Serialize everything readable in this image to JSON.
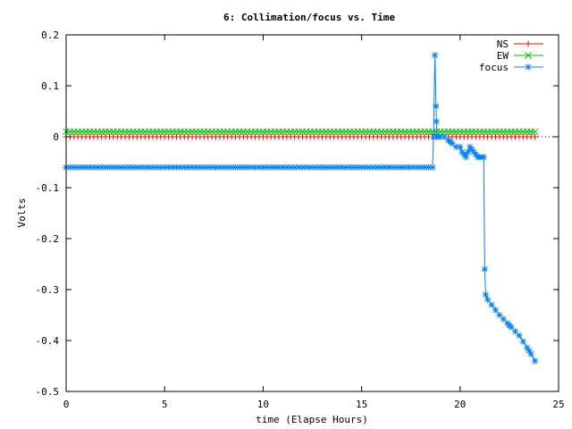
{
  "chart_data": {
    "type": "line",
    "title": "6: Collimation/focus vs. Time",
    "xlabel": "time (Elapse Hours)",
    "ylabel": "Volts",
    "xlim": [
      0,
      25
    ],
    "ylim": [
      -0.5,
      0.2
    ],
    "x_ticks": [
      0,
      5,
      10,
      15,
      20,
      25
    ],
    "x_tick_labels": [
      "0",
      "5",
      "10",
      "15",
      "20",
      "25"
    ],
    "y_ticks": [
      -0.5,
      -0.4,
      -0.3,
      -0.2,
      -0.1,
      0,
      0.1,
      0.2
    ],
    "y_tick_labels": [
      "-0.5",
      "-0.4",
      "-0.3",
      "-0.2",
      "-0.1",
      "0",
      "0.1",
      "0.2"
    ],
    "legend_position": "top-right",
    "series": [
      {
        "name": "NS",
        "color": "#ff0000",
        "marker": "plus",
        "x": [
          0,
          23.8
        ],
        "values": [
          0.0,
          0.0
        ],
        "sample_step": 0.2
      },
      {
        "name": "EW",
        "color": "#00c000",
        "marker": "cross",
        "x": [
          0,
          23.8
        ],
        "values": [
          0.01,
          0.01
        ],
        "sample_step": 0.2
      },
      {
        "name": "focus",
        "color": "#0080ff",
        "marker": "star",
        "x": [
          0,
          18.6,
          18.65,
          18.72,
          18.78,
          18.82,
          18.9,
          19.2,
          19.5,
          19.8,
          20.0,
          20.1,
          20.3,
          20.5,
          20.7,
          20.9,
          21.1,
          21.2,
          21.25,
          21.3,
          21.4,
          21.6,
          22.0,
          22.5,
          23.0,
          23.5,
          23.8
        ],
        "values": [
          -0.06,
          -0.06,
          0.0,
          0.16,
          0.06,
          0.0,
          0.0,
          0.0,
          -0.01,
          -0.02,
          -0.02,
          -0.03,
          -0.04,
          -0.02,
          -0.03,
          -0.04,
          -0.04,
          -0.04,
          -0.26,
          -0.31,
          -0.32,
          -0.33,
          -0.35,
          -0.37,
          -0.39,
          -0.42,
          -0.44
        ],
        "sample_step": 0.2
      }
    ]
  }
}
